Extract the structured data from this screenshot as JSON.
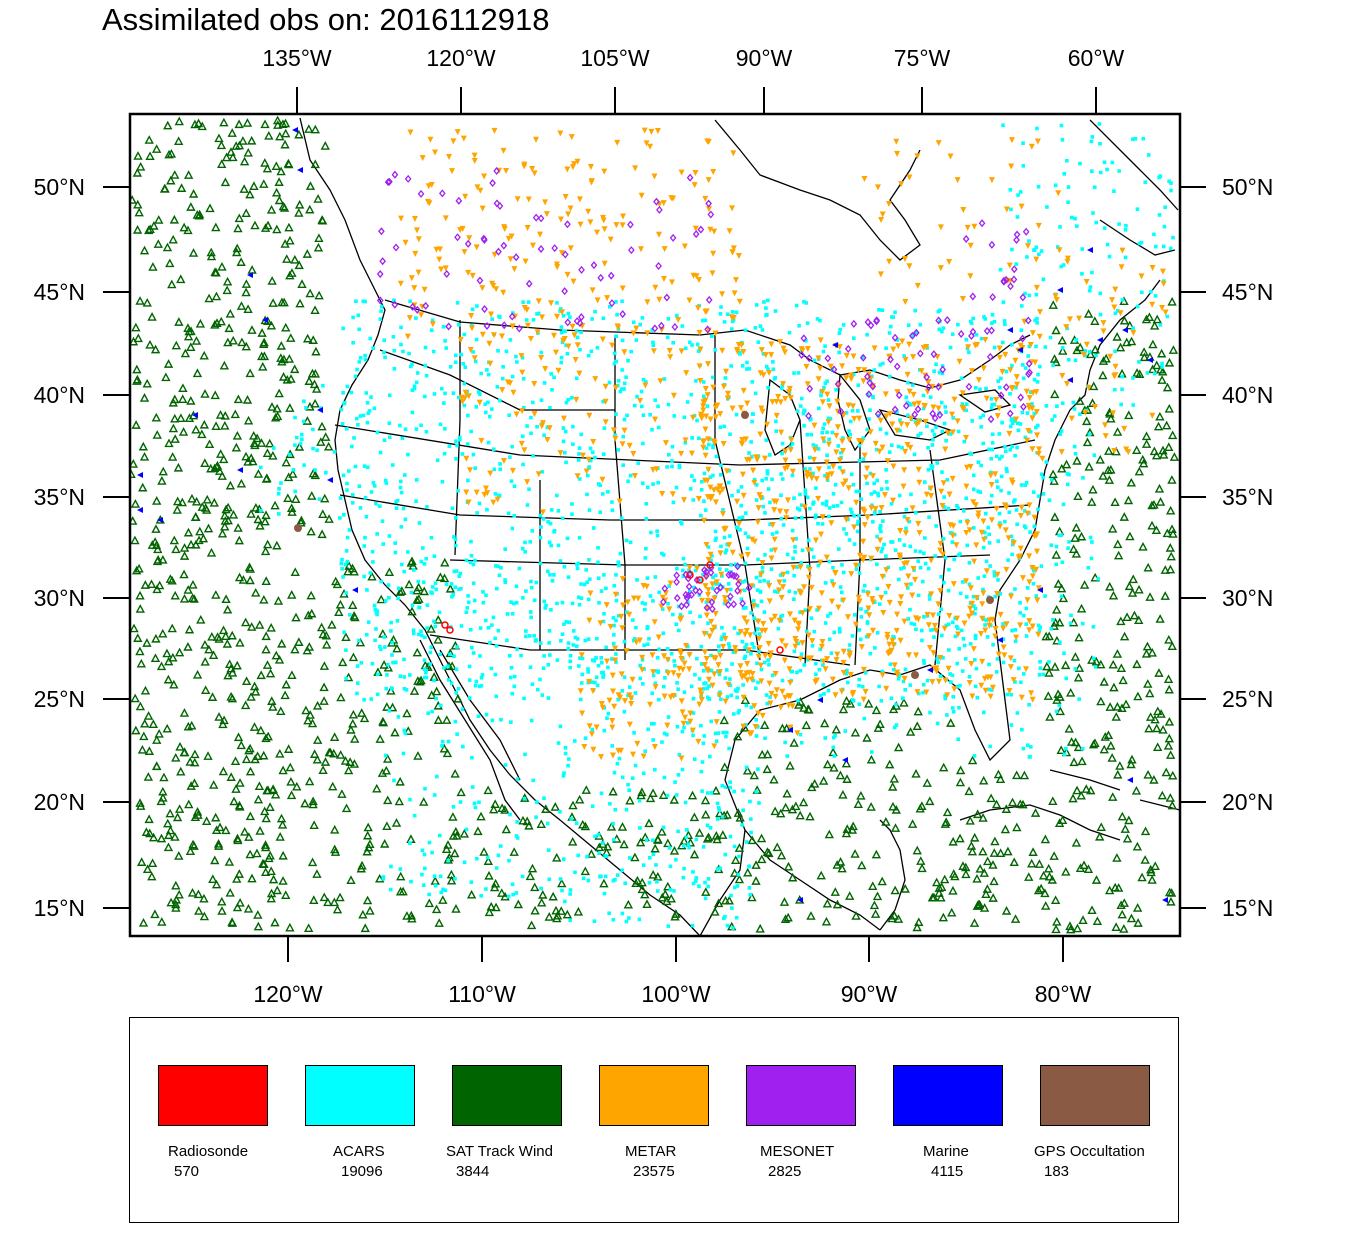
{
  "title": "Assimilated obs on: 2016112918",
  "map": {
    "top_lon_labels": [
      "135°W",
      "120°W",
      "105°W",
      "90°W",
      "75°W",
      "60°W"
    ],
    "bottom_lon_labels": [
      "120°W",
      "110°W",
      "100°W",
      "90°W",
      "80°W"
    ],
    "left_lat_labels": [
      "50°N",
      "45°N",
      "40°N",
      "35°N",
      "30°N",
      "25°N",
      "20°N",
      "15°N"
    ],
    "right_lat_labels": [
      "50°N",
      "45°N",
      "40°N",
      "35°N",
      "30°N",
      "25°N",
      "20°N",
      "15°N"
    ]
  },
  "legend": [
    {
      "name": "Radiosonde",
      "count": "570",
      "color": "#ff0000"
    },
    {
      "name": "ACARS",
      "count": "19096",
      "color": "#00ffff"
    },
    {
      "name": "SAT Track Wind",
      "count": "3844",
      "color": "#006400"
    },
    {
      "name": "METAR",
      "count": "23575",
      "color": "#ffa500"
    },
    {
      "name": "MESONET",
      "count": "2825",
      "color": "#a020f0"
    },
    {
      "name": "Marine",
      "count": "4115",
      "color": "#0000ff"
    },
    {
      "name": "GPS Occultation",
      "count": "183",
      "color": "#8b5a44"
    }
  ]
}
